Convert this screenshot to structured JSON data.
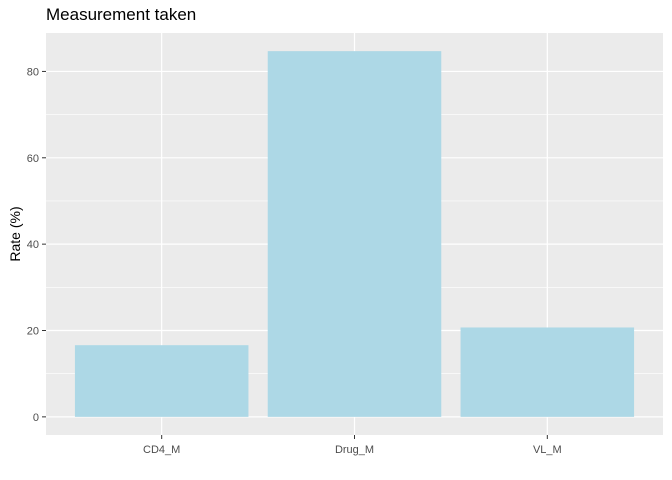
{
  "chart_data": {
    "type": "bar",
    "title": "Measurement taken",
    "xlabel": "",
    "ylabel": "Rate (%)",
    "categories": [
      "CD4_M",
      "Drug_M",
      "VL_M"
    ],
    "values": [
      16.6,
      84.7,
      20.7
    ],
    "ylim": [
      -4.2,
      88.9
    ],
    "yticks": [
      0,
      20,
      40,
      60,
      80
    ],
    "grid": true,
    "bar_color": "#ADD8E6",
    "panel_background": "#EBEBEB",
    "gridline_color": "#FFFFFF"
  }
}
